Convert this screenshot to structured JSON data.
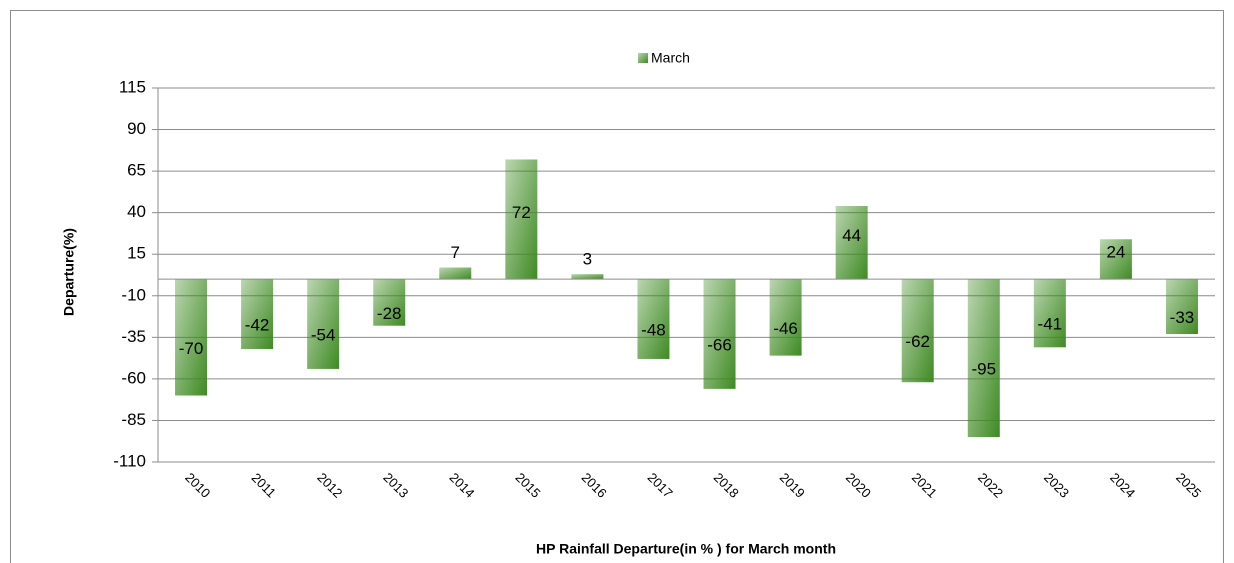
{
  "chart_data": {
    "type": "bar",
    "title": "HP Rainfall  Departure(in % ) for  March month",
    "y_label": "Departure(%)",
    "categories": [
      "2010",
      "2011",
      "2012",
      "2013",
      "2014",
      "2015",
      "2016",
      "2017",
      "2018",
      "2019",
      "2020",
      "2021",
      "2022",
      "2023",
      "2024",
      "2025"
    ],
    "series": [
      {
        "name": "March",
        "color": "#3e8a22",
        "values": [
          -70,
          -42,
          -54,
          -28,
          7,
          72,
          3,
          -48,
          -66,
          -46,
          44,
          -62,
          -95,
          -41,
          24,
          -33
        ]
      }
    ],
    "ylim": [
      -110,
      115
    ],
    "yticks": [
      -110,
      -85,
      -60,
      -35,
      -10,
      15,
      40,
      65,
      90,
      115
    ],
    "grid": true,
    "legend": "top"
  }
}
